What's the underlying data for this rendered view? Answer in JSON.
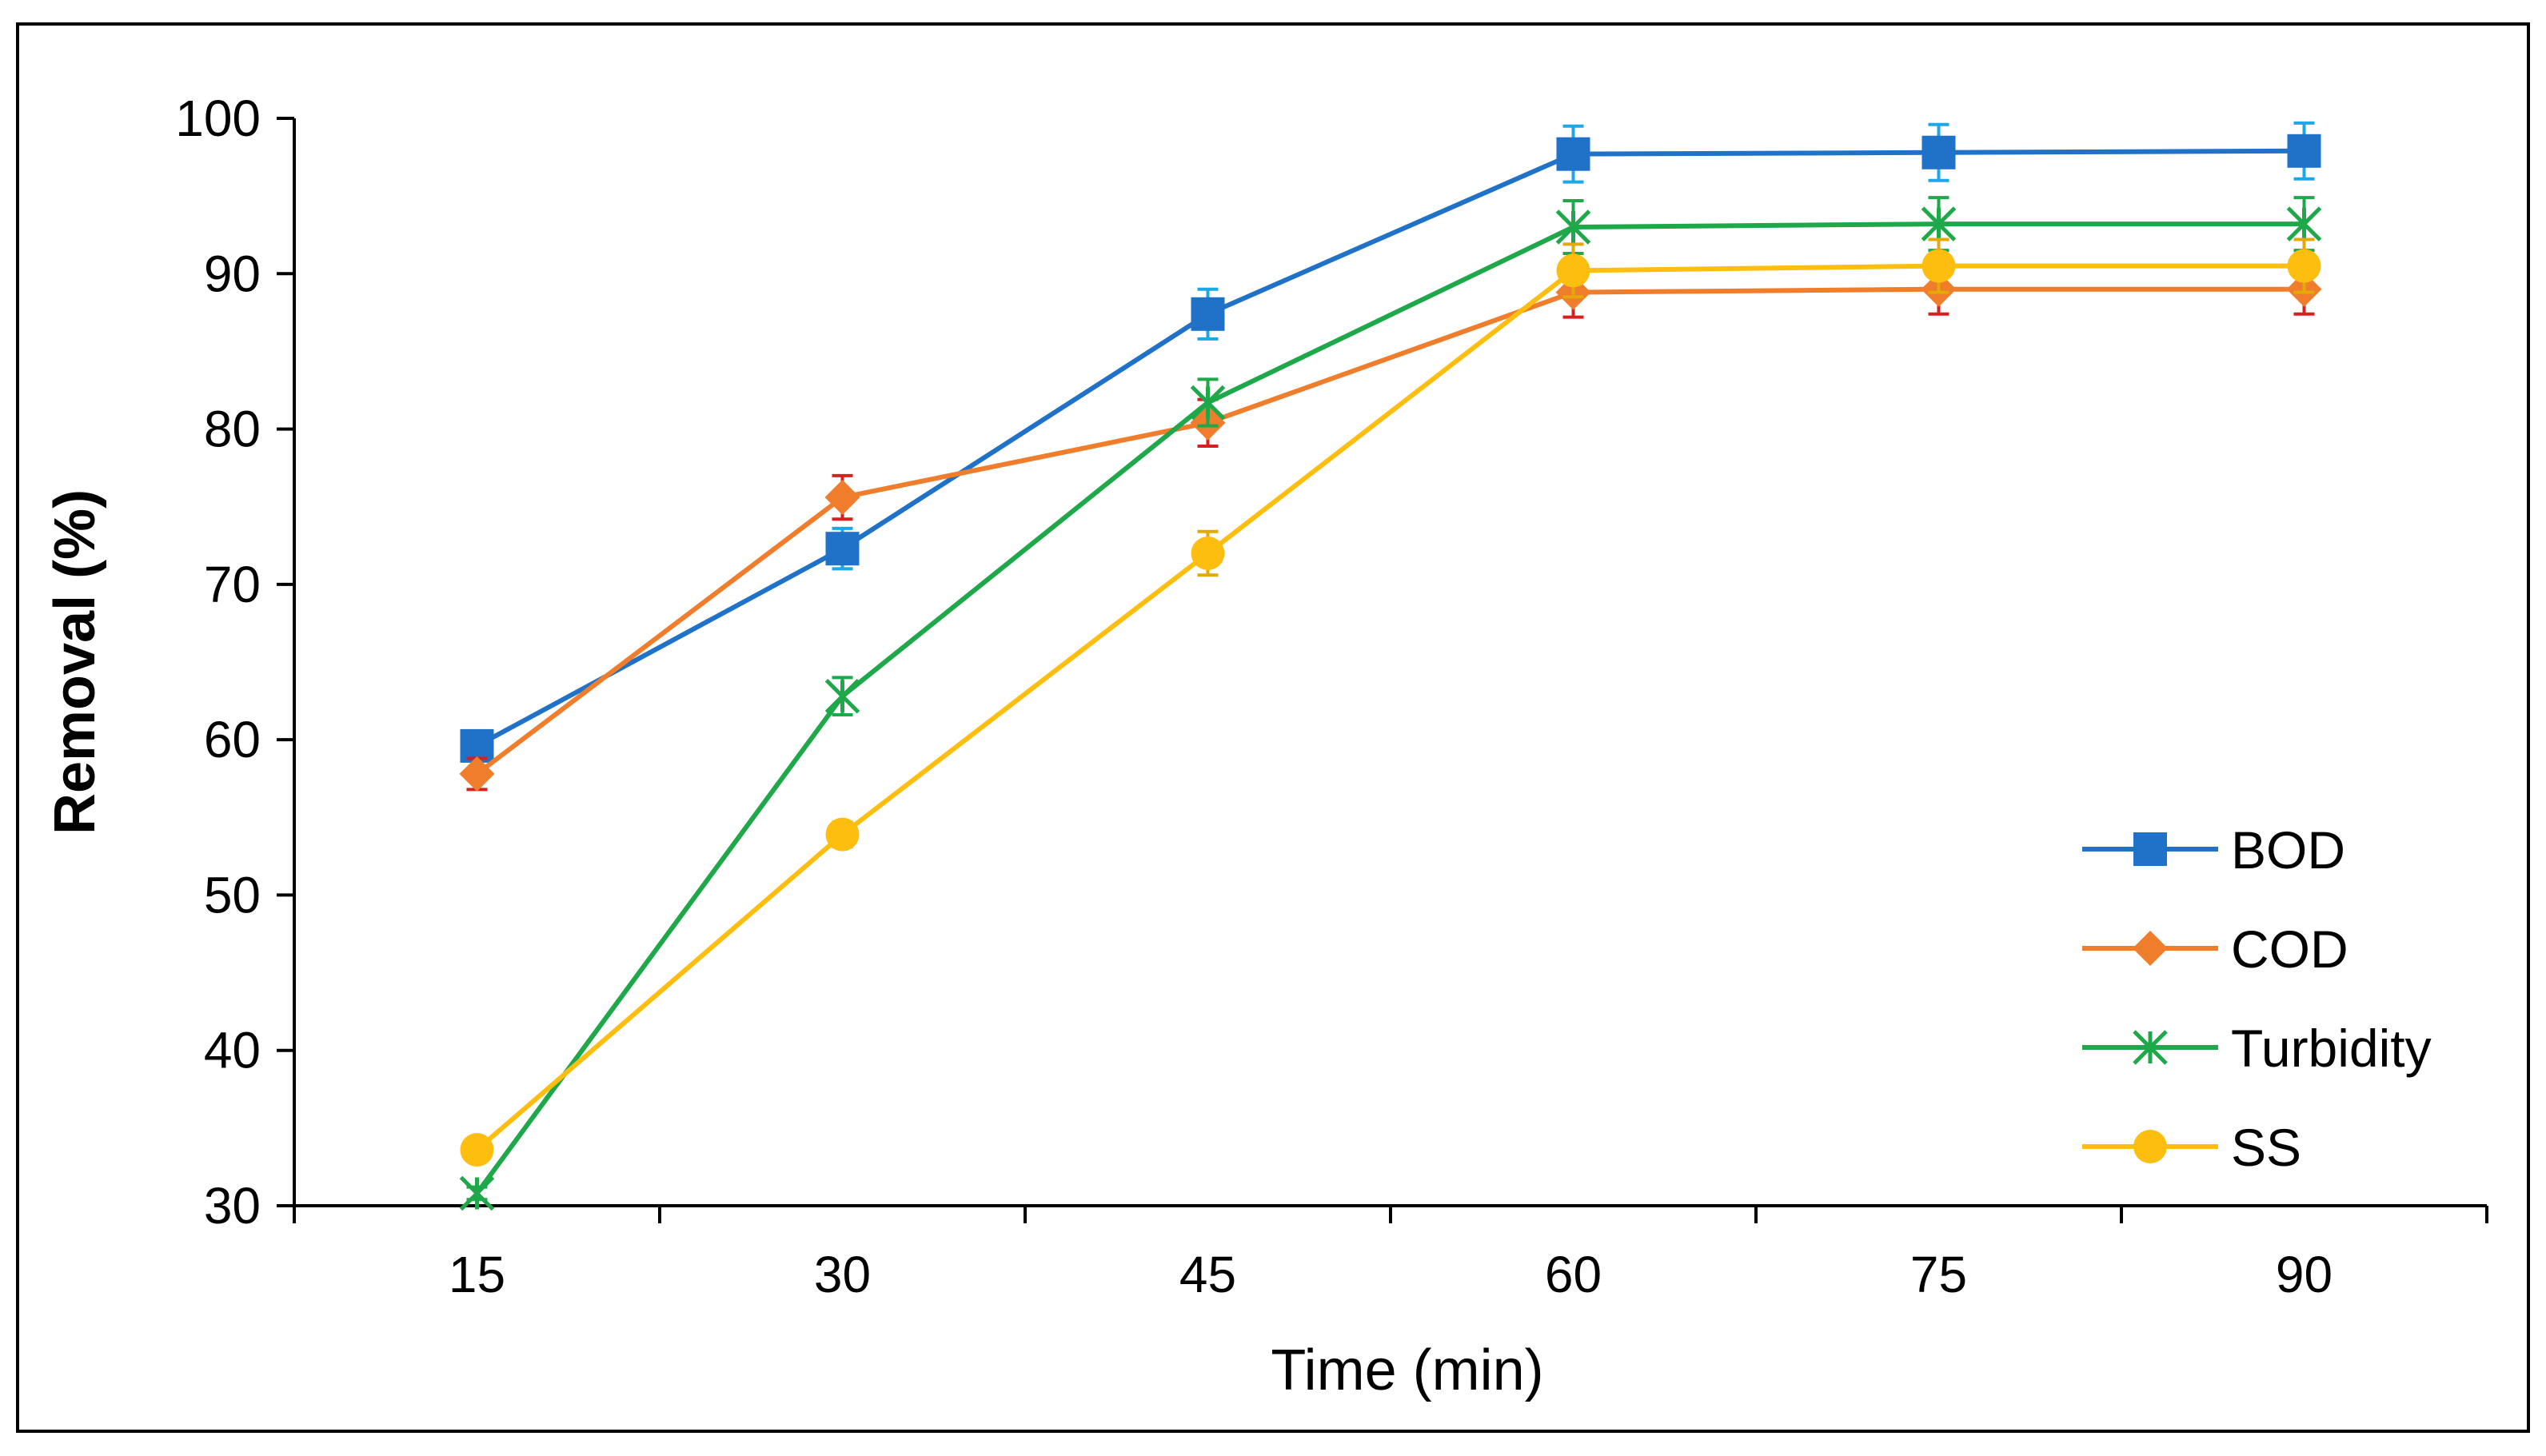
{
  "chart_data": {
    "type": "line",
    "title": "",
    "xlabel": "Time (min)",
    "ylabel": "Removal (%)",
    "x": [
      15,
      30,
      45,
      60,
      75,
      90
    ],
    "x_tick_labels": [
      "15",
      "30",
      "45",
      "60",
      "75",
      "90"
    ],
    "ylim": [
      30,
      100
    ],
    "y_ticks": [
      30,
      40,
      50,
      60,
      70,
      80,
      90,
      100
    ],
    "y_tick_labels": [
      "30",
      "40",
      "50",
      "60",
      "70",
      "80",
      "90",
      "100"
    ],
    "grid": false,
    "legend_position": "bottom-right",
    "series": [
      {
        "name": "BOD",
        "marker": "square",
        "color": "#1F72C8",
        "error_color": "#1EA7E6",
        "values": [
          59.6,
          72.3,
          87.4,
          97.7,
          97.8,
          97.9
        ],
        "errors": [
          0.9,
          1.3,
          1.6,
          1.8,
          1.8,
          1.8
        ]
      },
      {
        "name": "COD",
        "marker": "diamond",
        "color": "#F07D2C",
        "error_color": "#D62020",
        "values": [
          57.8,
          75.6,
          80.4,
          88.8,
          89.0,
          89.0
        ],
        "errors": [
          1.0,
          1.4,
          1.5,
          1.6,
          1.6,
          1.6
        ]
      },
      {
        "name": "Turbidity",
        "marker": "asterisk",
        "color": "#1EA84A",
        "error_color": "#1EA84A",
        "values": [
          30.8,
          62.8,
          81.7,
          93.0,
          93.2,
          93.2
        ],
        "errors": [
          0.4,
          1.2,
          1.5,
          1.7,
          1.7,
          1.7
        ]
      },
      {
        "name": "SS",
        "marker": "circle",
        "color": "#FDBE10",
        "error_color": "#E3A906",
        "values": [
          33.6,
          53.9,
          72.0,
          90.2,
          90.5,
          90.5
        ],
        "errors": [
          0.3,
          0.8,
          1.4,
          1.7,
          1.7,
          1.7
        ]
      }
    ]
  }
}
